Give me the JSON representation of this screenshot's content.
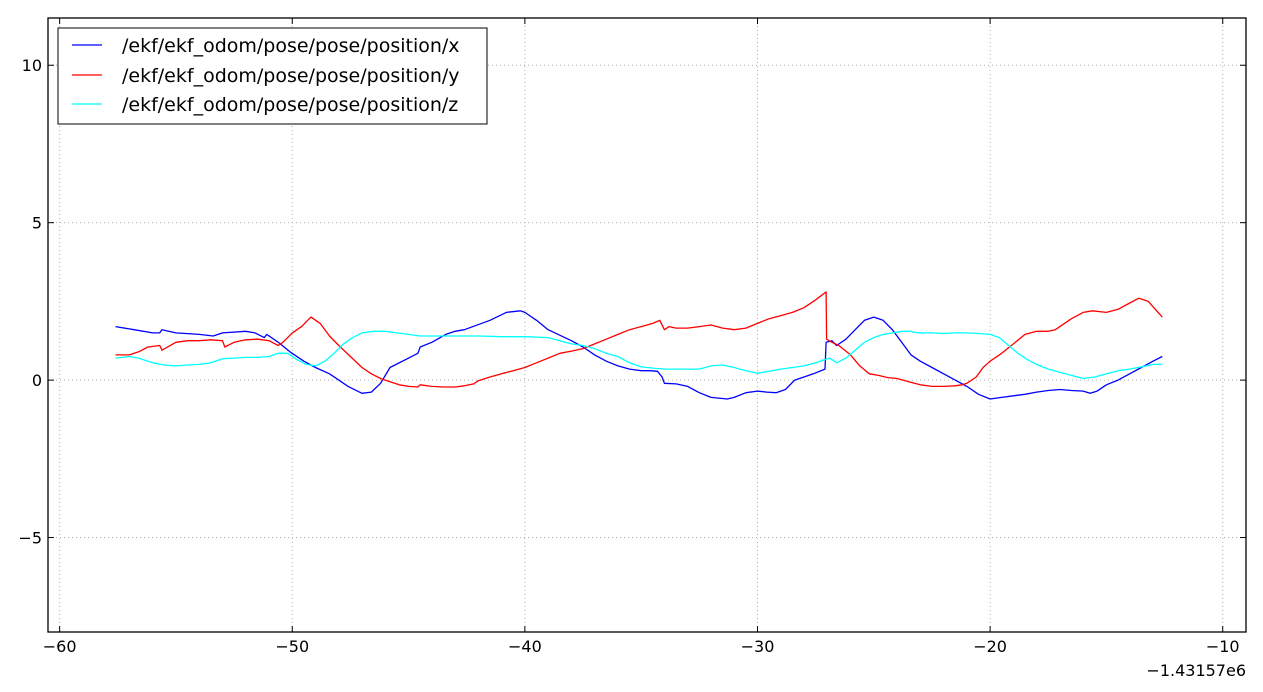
{
  "chart_data": {
    "type": "line",
    "title": "",
    "xlabel": "",
    "ylabel": "",
    "x_offset_label": "−1.43157e6",
    "xlim": [
      -60.5,
      -9
    ],
    "ylim": [
      -8,
      11.5
    ],
    "x_ticks": [
      -60,
      -50,
      -40,
      -30,
      -20,
      -10
    ],
    "x_tick_labels": [
      "−60",
      "−50",
      "−40",
      "−30",
      "−20",
      "−10"
    ],
    "y_ticks": [
      -5,
      0,
      5,
      10
    ],
    "y_tick_labels": [
      "−5",
      "0",
      "5",
      "10"
    ],
    "grid": true,
    "legend_position": "top-left",
    "series": [
      {
        "name": "/ekf/ekf_odom/pose/pose/position/x",
        "color": "#0000ff",
        "points": [
          [
            -57.6,
            1.7
          ],
          [
            -56.8,
            1.6
          ],
          [
            -56,
            1.5
          ],
          [
            -55.7,
            1.5
          ],
          [
            -55.6,
            1.6
          ],
          [
            -55,
            1.5
          ],
          [
            -54,
            1.45
          ],
          [
            -53.4,
            1.4
          ],
          [
            -53,
            1.5
          ],
          [
            -52,
            1.55
          ],
          [
            -51.6,
            1.5
          ],
          [
            -51.2,
            1.35
          ],
          [
            -51.1,
            1.45
          ],
          [
            -50.6,
            1.2
          ],
          [
            -50.1,
            0.9
          ],
          [
            -49.5,
            0.6
          ],
          [
            -49,
            0.4
          ],
          [
            -48.4,
            0.2
          ],
          [
            -48,
            0
          ],
          [
            -47.6,
            -0.2
          ],
          [
            -47,
            -0.42
          ],
          [
            -46.6,
            -0.38
          ],
          [
            -46.2,
            -0.1
          ],
          [
            -45.8,
            0.4
          ],
          [
            -45,
            0.7
          ],
          [
            -44.6,
            0.85
          ],
          [
            -44.5,
            1.05
          ],
          [
            -44,
            1.2
          ],
          [
            -43.4,
            1.45
          ],
          [
            -43,
            1.55
          ],
          [
            -42.6,
            1.6
          ],
          [
            -41.5,
            1.9
          ],
          [
            -40.8,
            2.15
          ],
          [
            -40.2,
            2.2
          ],
          [
            -40,
            2.15
          ],
          [
            -39.5,
            1.9
          ],
          [
            -39,
            1.6
          ],
          [
            -38,
            1.25
          ],
          [
            -37.5,
            1.05
          ],
          [
            -37,
            0.8
          ],
          [
            -36.5,
            0.6
          ],
          [
            -36,
            0.45
          ],
          [
            -35.5,
            0.35
          ],
          [
            -35,
            0.3
          ],
          [
            -34.6,
            0.3
          ],
          [
            -34.3,
            0.28
          ],
          [
            -34.1,
            0.1
          ],
          [
            -34,
            -0.1
          ],
          [
            -33.5,
            -0.12
          ],
          [
            -33,
            -0.2
          ],
          [
            -32.5,
            -0.4
          ],
          [
            -32,
            -0.55
          ],
          [
            -31.3,
            -0.6
          ],
          [
            -31,
            -0.55
          ],
          [
            -30.5,
            -0.4
          ],
          [
            -30,
            -0.35
          ],
          [
            -29.6,
            -0.38
          ],
          [
            -29.2,
            -0.4
          ],
          [
            -28.8,
            -0.3
          ],
          [
            -28.4,
            0
          ],
          [
            -28,
            0.1
          ],
          [
            -27.6,
            0.2
          ],
          [
            -27.1,
            0.35
          ],
          [
            -27.05,
            1.2
          ],
          [
            -26.8,
            1.25
          ],
          [
            -26.6,
            1.1
          ],
          [
            -26.2,
            1.3
          ],
          [
            -25.8,
            1.6
          ],
          [
            -25.4,
            1.9
          ],
          [
            -25,
            2
          ],
          [
            -24.6,
            1.9
          ],
          [
            -24.2,
            1.6
          ],
          [
            -23.8,
            1.2
          ],
          [
            -23.4,
            0.8
          ],
          [
            -23,
            0.6
          ],
          [
            -22.5,
            0.4
          ],
          [
            -22,
            0.2
          ],
          [
            -21.5,
            0
          ],
          [
            -21,
            -0.2
          ],
          [
            -20.5,
            -0.45
          ],
          [
            -20,
            -0.6
          ],
          [
            -19.5,
            -0.55
          ],
          [
            -19,
            -0.5
          ],
          [
            -18.5,
            -0.45
          ],
          [
            -18,
            -0.38
          ],
          [
            -17.5,
            -0.33
          ],
          [
            -17,
            -0.3
          ],
          [
            -16.5,
            -0.33
          ],
          [
            -16,
            -0.35
          ],
          [
            -15.7,
            -0.42
          ],
          [
            -15.4,
            -0.35
          ],
          [
            -15,
            -0.15
          ],
          [
            -14.5,
            0
          ],
          [
            -14,
            0.2
          ],
          [
            -13.5,
            0.4
          ],
          [
            -13,
            0.6
          ],
          [
            -12.6,
            0.75
          ]
        ]
      },
      {
        "name": "/ekf/ekf_odom/pose/pose/position/y",
        "color": "#ff0000",
        "points": [
          [
            -57.6,
            0.8
          ],
          [
            -57,
            0.8
          ],
          [
            -56.6,
            0.9
          ],
          [
            -56.2,
            1.05
          ],
          [
            -55.7,
            1.1
          ],
          [
            -55.6,
            0.95
          ],
          [
            -55,
            1.2
          ],
          [
            -54.5,
            1.25
          ],
          [
            -54,
            1.25
          ],
          [
            -53.5,
            1.28
          ],
          [
            -53,
            1.25
          ],
          [
            -52.9,
            1.05
          ],
          [
            -52.5,
            1.2
          ],
          [
            -52,
            1.28
          ],
          [
            -51.5,
            1.3
          ],
          [
            -51,
            1.25
          ],
          [
            -50.6,
            1.1
          ],
          [
            -50.4,
            1.2
          ],
          [
            -50,
            1.5
          ],
          [
            -49.6,
            1.7
          ],
          [
            -49.2,
            2
          ],
          [
            -48.8,
            1.8
          ],
          [
            -48.4,
            1.4
          ],
          [
            -48,
            1.1
          ],
          [
            -47.5,
            0.75
          ],
          [
            -47,
            0.4
          ],
          [
            -46.6,
            0.2
          ],
          [
            -46.2,
            0.05
          ],
          [
            -45.8,
            -0.05
          ],
          [
            -45.4,
            -0.15
          ],
          [
            -45,
            -0.2
          ],
          [
            -44.6,
            -0.22
          ],
          [
            -44.5,
            -0.15
          ],
          [
            -44,
            -0.2
          ],
          [
            -43.5,
            -0.22
          ],
          [
            -43,
            -0.22
          ],
          [
            -42.6,
            -0.18
          ],
          [
            -42.2,
            -0.12
          ],
          [
            -42,
            -0.02
          ],
          [
            -41.5,
            0.1
          ],
          [
            -41,
            0.2
          ],
          [
            -40.5,
            0.3
          ],
          [
            -40,
            0.4
          ],
          [
            -39.5,
            0.55
          ],
          [
            -39,
            0.7
          ],
          [
            -38.5,
            0.85
          ],
          [
            -38,
            0.92
          ],
          [
            -37.5,
            1
          ],
          [
            -37,
            1.15
          ],
          [
            -36.5,
            1.3
          ],
          [
            -36,
            1.45
          ],
          [
            -35.5,
            1.6
          ],
          [
            -35,
            1.7
          ],
          [
            -34.5,
            1.8
          ],
          [
            -34.2,
            1.9
          ],
          [
            -34,
            1.6
          ],
          [
            -33.8,
            1.7
          ],
          [
            -33.5,
            1.65
          ],
          [
            -33,
            1.65
          ],
          [
            -32.5,
            1.7
          ],
          [
            -32,
            1.75
          ],
          [
            -31.5,
            1.65
          ],
          [
            -31,
            1.6
          ],
          [
            -30.5,
            1.65
          ],
          [
            -30,
            1.8
          ],
          [
            -29.5,
            1.95
          ],
          [
            -29,
            2.05
          ],
          [
            -28.5,
            2.15
          ],
          [
            -28,
            2.3
          ],
          [
            -27.5,
            2.55
          ],
          [
            -27.05,
            2.8
          ],
          [
            -27.03,
            1.3
          ],
          [
            -26.8,
            1.2
          ],
          [
            -26.5,
            1.1
          ],
          [
            -26,
            0.8
          ],
          [
            -25.6,
            0.45
          ],
          [
            -25.2,
            0.2
          ],
          [
            -24.8,
            0.15
          ],
          [
            -24.4,
            0.08
          ],
          [
            -24,
            0.05
          ],
          [
            -23.5,
            -0.05
          ],
          [
            -23,
            -0.15
          ],
          [
            -22.5,
            -0.2
          ],
          [
            -22,
            -0.2
          ],
          [
            -21.5,
            -0.18
          ],
          [
            -21.2,
            -0.15
          ],
          [
            -21,
            -0.1
          ],
          [
            -20.6,
            0.1
          ],
          [
            -20.3,
            0.4
          ],
          [
            -20,
            0.6
          ],
          [
            -19.5,
            0.85
          ],
          [
            -19,
            1.15
          ],
          [
            -18.5,
            1.45
          ],
          [
            -18,
            1.55
          ],
          [
            -17.5,
            1.55
          ],
          [
            -17.2,
            1.6
          ],
          [
            -17,
            1.7
          ],
          [
            -16.5,
            1.95
          ],
          [
            -16,
            2.15
          ],
          [
            -15.6,
            2.2
          ],
          [
            -15,
            2.15
          ],
          [
            -14.5,
            2.25
          ],
          [
            -14,
            2.45
          ],
          [
            -13.6,
            2.6
          ],
          [
            -13.2,
            2.5
          ],
          [
            -12.9,
            2.25
          ],
          [
            -12.6,
            2
          ]
        ]
      },
      {
        "name": "/ekf/ekf_odom/pose/pose/position/z",
        "color": "#00ffff",
        "points": [
          [
            -57.6,
            0.7
          ],
          [
            -57,
            0.75
          ],
          [
            -56.6,
            0.7
          ],
          [
            -56,
            0.55
          ],
          [
            -55.5,
            0.48
          ],
          [
            -55,
            0.45
          ],
          [
            -54.5,
            0.48
          ],
          [
            -54,
            0.5
          ],
          [
            -53.5,
            0.55
          ],
          [
            -53,
            0.68
          ],
          [
            -52.5,
            0.7
          ],
          [
            -52,
            0.72
          ],
          [
            -51.5,
            0.72
          ],
          [
            -51,
            0.75
          ],
          [
            -50.6,
            0.85
          ],
          [
            -50.2,
            0.85
          ],
          [
            -49.8,
            0.65
          ],
          [
            -49.4,
            0.5
          ],
          [
            -49,
            0.45
          ],
          [
            -48.6,
            0.6
          ],
          [
            -48.2,
            0.85
          ],
          [
            -47.8,
            1.15
          ],
          [
            -47.4,
            1.35
          ],
          [
            -47,
            1.5
          ],
          [
            -46.5,
            1.55
          ],
          [
            -46,
            1.55
          ],
          [
            -45.5,
            1.5
          ],
          [
            -45,
            1.45
          ],
          [
            -44.5,
            1.4
          ],
          [
            -44,
            1.4
          ],
          [
            -43,
            1.4
          ],
          [
            -42,
            1.4
          ],
          [
            -41,
            1.38
          ],
          [
            -40,
            1.38
          ],
          [
            -39,
            1.35
          ],
          [
            -38.5,
            1.25
          ],
          [
            -38,
            1.15
          ],
          [
            -37.5,
            1.1
          ],
          [
            -37,
            1
          ],
          [
            -36.5,
            0.85
          ],
          [
            -36,
            0.75
          ],
          [
            -35.5,
            0.55
          ],
          [
            -35,
            0.42
          ],
          [
            -34.5,
            0.38
          ],
          [
            -34,
            0.35
          ],
          [
            -33.5,
            0.35
          ],
          [
            -33,
            0.35
          ],
          [
            -32.5,
            0.35
          ],
          [
            -32,
            0.45
          ],
          [
            -31.5,
            0.48
          ],
          [
            -31,
            0.4
          ],
          [
            -30.5,
            0.3
          ],
          [
            -30,
            0.22
          ],
          [
            -29.5,
            0.28
          ],
          [
            -29,
            0.35
          ],
          [
            -28.5,
            0.4
          ],
          [
            -28,
            0.45
          ],
          [
            -27.5,
            0.55
          ],
          [
            -27.1,
            0.65
          ],
          [
            -26.9,
            0.7
          ],
          [
            -26.6,
            0.55
          ],
          [
            -26.2,
            0.7
          ],
          [
            -25.8,
            0.95
          ],
          [
            -25.4,
            1.2
          ],
          [
            -25,
            1.35
          ],
          [
            -24.6,
            1.45
          ],
          [
            -24.2,
            1.5
          ],
          [
            -23.8,
            1.55
          ],
          [
            -23.4,
            1.55
          ],
          [
            -23.3,
            1.52
          ],
          [
            -23,
            1.5
          ],
          [
            -22.5,
            1.5
          ],
          [
            -22,
            1.48
          ],
          [
            -21.5,
            1.5
          ],
          [
            -21,
            1.5
          ],
          [
            -20.5,
            1.48
          ],
          [
            -20,
            1.45
          ],
          [
            -19.6,
            1.35
          ],
          [
            -19.2,
            1.1
          ],
          [
            -18.8,
            0.85
          ],
          [
            -18.4,
            0.65
          ],
          [
            -18,
            0.5
          ],
          [
            -17.5,
            0.35
          ],
          [
            -17,
            0.25
          ],
          [
            -16.5,
            0.15
          ],
          [
            -16,
            0.05
          ],
          [
            -15.5,
            0.1
          ],
          [
            -15,
            0.2
          ],
          [
            -14.5,
            0.3
          ],
          [
            -14,
            0.35
          ],
          [
            -13.5,
            0.42
          ],
          [
            -13,
            0.5
          ],
          [
            -12.6,
            0.5
          ]
        ]
      }
    ]
  }
}
